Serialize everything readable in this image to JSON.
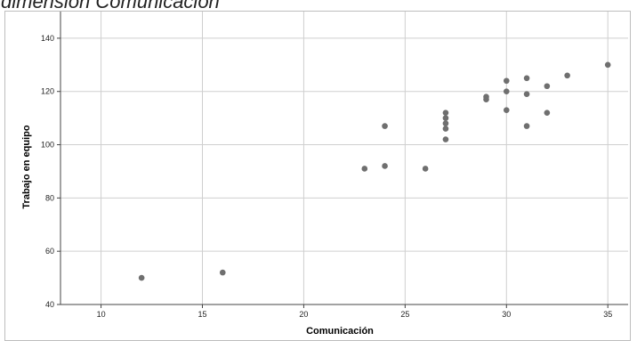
{
  "heading": {
    "text": "dimensión Comunicación"
  },
  "colors": {
    "point": "#6f6f6f",
    "grid": "#cfcfcf",
    "axis": "#444444"
  },
  "chart_data": {
    "type": "scatter",
    "title": "",
    "xlabel": "Comunicación",
    "ylabel": "Trabajo en equipo",
    "xlim": [
      8,
      36
    ],
    "ylim": [
      40,
      150
    ],
    "xticks": [
      10,
      15,
      20,
      25,
      30,
      35
    ],
    "yticks": [
      40,
      60,
      80,
      100,
      120,
      140
    ],
    "grid": "vertical lines at x ticks, horizontal lines at y ticks",
    "points": [
      {
        "x": 12,
        "y": 50
      },
      {
        "x": 16,
        "y": 52
      },
      {
        "x": 23,
        "y": 91
      },
      {
        "x": 24,
        "y": 92
      },
      {
        "x": 24,
        "y": 107
      },
      {
        "x": 26,
        "y": 91
      },
      {
        "x": 27,
        "y": 102
      },
      {
        "x": 27,
        "y": 106
      },
      {
        "x": 27,
        "y": 108
      },
      {
        "x": 27,
        "y": 110
      },
      {
        "x": 27,
        "y": 112
      },
      {
        "x": 29,
        "y": 117
      },
      {
        "x": 29,
        "y": 118
      },
      {
        "x": 30,
        "y": 113
      },
      {
        "x": 30,
        "y": 120
      },
      {
        "x": 30,
        "y": 124
      },
      {
        "x": 31,
        "y": 107
      },
      {
        "x": 31,
        "y": 119
      },
      {
        "x": 31,
        "y": 125
      },
      {
        "x": 32,
        "y": 112
      },
      {
        "x": 32,
        "y": 122
      },
      {
        "x": 33,
        "y": 126
      },
      {
        "x": 35,
        "y": 130
      }
    ]
  }
}
